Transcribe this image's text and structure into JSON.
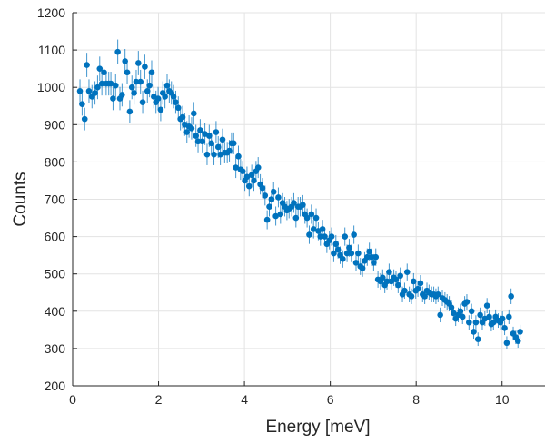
{
  "chart_data": {
    "type": "scatter",
    "title": "",
    "xlabel": "Energy [meV]",
    "ylabel": "Counts",
    "xlim": [
      0,
      11
    ],
    "ylim": [
      200,
      1200
    ],
    "xticks": [
      0,
      2,
      4,
      6,
      8,
      10
    ],
    "yticks": [
      200,
      300,
      400,
      500,
      600,
      700,
      800,
      900,
      1000,
      1100,
      1200
    ],
    "grid": true,
    "error_bars": true,
    "marker_color": "#0072BD",
    "points": [
      [
        0.17,
        990
      ],
      [
        0.22,
        955
      ],
      [
        0.28,
        915
      ],
      [
        0.33,
        1060
      ],
      [
        0.38,
        990
      ],
      [
        0.45,
        975
      ],
      [
        0.52,
        985
      ],
      [
        0.58,
        1000
      ],
      [
        0.63,
        1050
      ],
      [
        0.68,
        1010
      ],
      [
        0.73,
        1040
      ],
      [
        0.78,
        1010
      ],
      [
        0.84,
        1010
      ],
      [
        0.89,
        1010
      ],
      [
        0.94,
        970
      ],
      [
        1.0,
        1005
      ],
      [
        1.05,
        1095
      ],
      [
        1.1,
        970
      ],
      [
        1.15,
        980
      ],
      [
        1.22,
        1070
      ],
      [
        1.27,
        1040
      ],
      [
        1.33,
        935
      ],
      [
        1.38,
        1000
      ],
      [
        1.43,
        985
      ],
      [
        1.48,
        1015
      ],
      [
        1.53,
        1065
      ],
      [
        1.58,
        1015
      ],
      [
        1.63,
        960
      ],
      [
        1.68,
        1055
      ],
      [
        1.74,
        990
      ],
      [
        1.79,
        1005
      ],
      [
        1.84,
        1040
      ],
      [
        1.89,
        975
      ],
      [
        1.94,
        960
      ],
      [
        1.99,
        970
      ],
      [
        2.05,
        940
      ],
      [
        2.1,
        985
      ],
      [
        2.15,
        975
      ],
      [
        2.2,
        1005
      ],
      [
        2.25,
        990
      ],
      [
        2.3,
        985
      ],
      [
        2.35,
        975
      ],
      [
        2.4,
        960
      ],
      [
        2.46,
        945
      ],
      [
        2.51,
        915
      ],
      [
        2.56,
        920
      ],
      [
        2.61,
        900
      ],
      [
        2.66,
        880
      ],
      [
        2.71,
        895
      ],
      [
        2.77,
        890
      ],
      [
        2.82,
        930
      ],
      [
        2.87,
        870
      ],
      [
        2.92,
        855
      ],
      [
        2.97,
        885
      ],
      [
        3.02,
        855
      ],
      [
        3.08,
        875
      ],
      [
        3.13,
        820
      ],
      [
        3.18,
        870
      ],
      [
        3.23,
        850
      ],
      [
        3.29,
        820
      ],
      [
        3.34,
        880
      ],
      [
        3.39,
        840
      ],
      [
        3.44,
        820
      ],
      [
        3.49,
        860
      ],
      [
        3.54,
        825
      ],
      [
        3.6,
        825
      ],
      [
        3.65,
        830
      ],
      [
        3.7,
        850
      ],
      [
        3.75,
        850
      ],
      [
        3.8,
        785
      ],
      [
        3.86,
        815
      ],
      [
        3.91,
        780
      ],
      [
        3.96,
        775
      ],
      [
        4.01,
        750
      ],
      [
        4.06,
        760
      ],
      [
        4.11,
        735
      ],
      [
        4.17,
        765
      ],
      [
        4.22,
        750
      ],
      [
        4.27,
        775
      ],
      [
        4.32,
        785
      ],
      [
        4.37,
        740
      ],
      [
        4.42,
        730
      ],
      [
        4.48,
        710
      ],
      [
        4.53,
        645
      ],
      [
        4.58,
        680
      ],
      [
        4.63,
        700
      ],
      [
        4.68,
        720
      ],
      [
        4.73,
        655
      ],
      [
        4.79,
        705
      ],
      [
        4.84,
        660
      ],
      [
        4.89,
        690
      ],
      [
        4.94,
        680
      ],
      [
        4.99,
        670
      ],
      [
        5.04,
        675
      ],
      [
        5.1,
        680
      ],
      [
        5.15,
        690
      ],
      [
        5.2,
        650
      ],
      [
        5.25,
        680
      ],
      [
        5.3,
        680
      ],
      [
        5.36,
        685
      ],
      [
        5.41,
        660
      ],
      [
        5.46,
        650
      ],
      [
        5.51,
        605
      ],
      [
        5.56,
        660
      ],
      [
        5.61,
        620
      ],
      [
        5.67,
        650
      ],
      [
        5.72,
        615
      ],
      [
        5.77,
        600
      ],
      [
        5.82,
        620
      ],
      [
        5.87,
        600
      ],
      [
        5.92,
        580
      ],
      [
        5.98,
        590
      ],
      [
        6.03,
        600
      ],
      [
        6.08,
        555
      ],
      [
        6.13,
        580
      ],
      [
        6.18,
        565
      ],
      [
        6.23,
        550
      ],
      [
        6.29,
        540
      ],
      [
        6.34,
        600
      ],
      [
        6.39,
        555
      ],
      [
        6.44,
        570
      ],
      [
        6.49,
        555
      ],
      [
        6.55,
        605
      ],
      [
        6.6,
        530
      ],
      [
        6.65,
        555
      ],
      [
        6.7,
        520
      ],
      [
        6.75,
        515
      ],
      [
        6.8,
        535
      ],
      [
        6.86,
        545
      ],
      [
        6.91,
        560
      ],
      [
        6.96,
        545
      ],
      [
        7.01,
        530
      ],
      [
        7.06,
        545
      ],
      [
        7.11,
        485
      ],
      [
        7.17,
        480
      ],
      [
        7.22,
        490
      ],
      [
        7.27,
        470
      ],
      [
        7.32,
        480
      ],
      [
        7.37,
        505
      ],
      [
        7.42,
        480
      ],
      [
        7.48,
        490
      ],
      [
        7.53,
        485
      ],
      [
        7.58,
        470
      ],
      [
        7.63,
        495
      ],
      [
        7.68,
        445
      ],
      [
        7.73,
        455
      ],
      [
        7.79,
        505
      ],
      [
        7.84,
        445
      ],
      [
        7.89,
        440
      ],
      [
        7.94,
        480
      ],
      [
        7.99,
        455
      ],
      [
        8.04,
        460
      ],
      [
        8.1,
        475
      ],
      [
        8.15,
        445
      ],
      [
        8.2,
        440
      ],
      [
        8.25,
        455
      ],
      [
        8.3,
        450
      ],
      [
        8.36,
        445
      ],
      [
        8.41,
        445
      ],
      [
        8.46,
        440
      ],
      [
        8.51,
        445
      ],
      [
        8.56,
        390
      ],
      [
        8.61,
        435
      ],
      [
        8.67,
        430
      ],
      [
        8.72,
        425
      ],
      [
        8.77,
        420
      ],
      [
        8.82,
        410
      ],
      [
        8.87,
        395
      ],
      [
        8.92,
        380
      ],
      [
        8.98,
        390
      ],
      [
        9.03,
        400
      ],
      [
        9.08,
        385
      ],
      [
        9.13,
        420
      ],
      [
        9.18,
        425
      ],
      [
        9.23,
        370
      ],
      [
        9.29,
        400
      ],
      [
        9.34,
        345
      ],
      [
        9.39,
        370
      ],
      [
        9.44,
        325
      ],
      [
        9.49,
        390
      ],
      [
        9.54,
        370
      ],
      [
        9.6,
        380
      ],
      [
        9.65,
        415
      ],
      [
        9.7,
        385
      ],
      [
        9.75,
        365
      ],
      [
        9.8,
        370
      ],
      [
        9.85,
        385
      ],
      [
        9.91,
        375
      ],
      [
        9.96,
        370
      ],
      [
        10.01,
        380
      ],
      [
        10.06,
        355
      ],
      [
        10.11,
        315
      ],
      [
        10.16,
        385
      ],
      [
        10.21,
        440
      ],
      [
        10.26,
        340
      ],
      [
        10.32,
        330
      ],
      [
        10.37,
        320
      ],
      [
        10.42,
        345
      ]
    ]
  }
}
